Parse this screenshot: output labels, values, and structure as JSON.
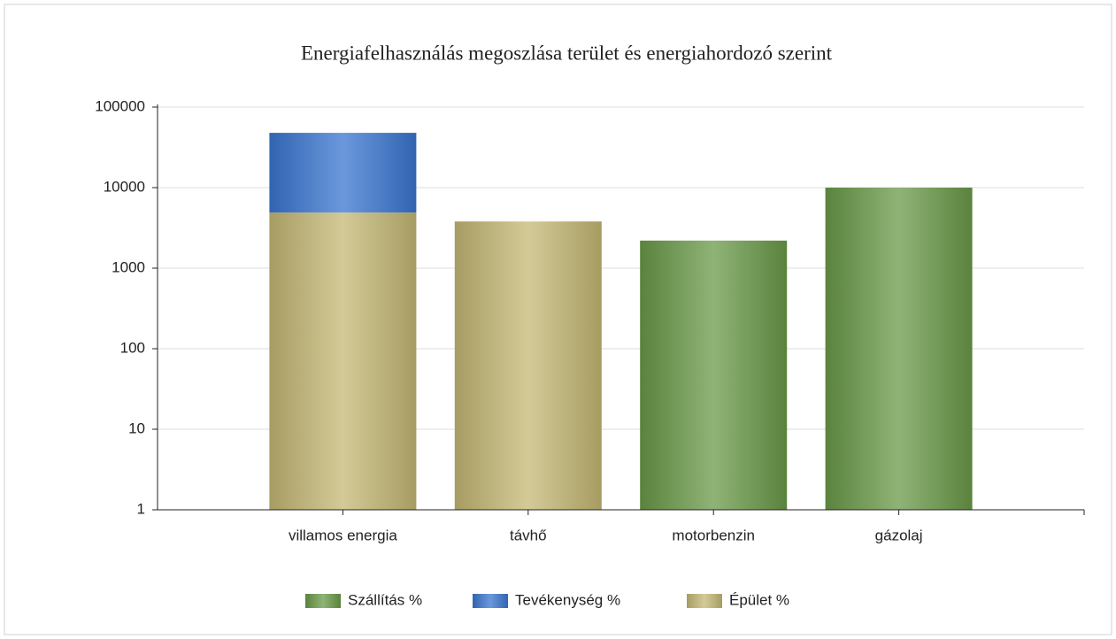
{
  "chart_data": {
    "type": "bar",
    "stacked": true,
    "log_scale": true,
    "grid": true,
    "legend": "bottom",
    "title": "Energiafelhasználás megoszlása terület és energiahordozó szerint",
    "categories": [
      "villamos energia",
      "távhő",
      "motorbenzin",
      "gázolaj"
    ],
    "series": [
      {
        "name": "Szállítás %",
        "color": "#6a9a48",
        "values": [
          null,
          null,
          2200,
          10000
        ]
      },
      {
        "name": "Tevékenység %",
        "color": "#3a76d0",
        "values": [
          43000,
          null,
          null,
          null
        ]
      },
      {
        "name": "Épület %",
        "color": "#c4b874",
        "values": [
          4900,
          3800,
          null,
          null
        ]
      }
    ],
    "ylim": [
      1,
      100000
    ],
    "yticks": [
      1,
      10,
      100,
      1000,
      10000,
      100000
    ]
  }
}
